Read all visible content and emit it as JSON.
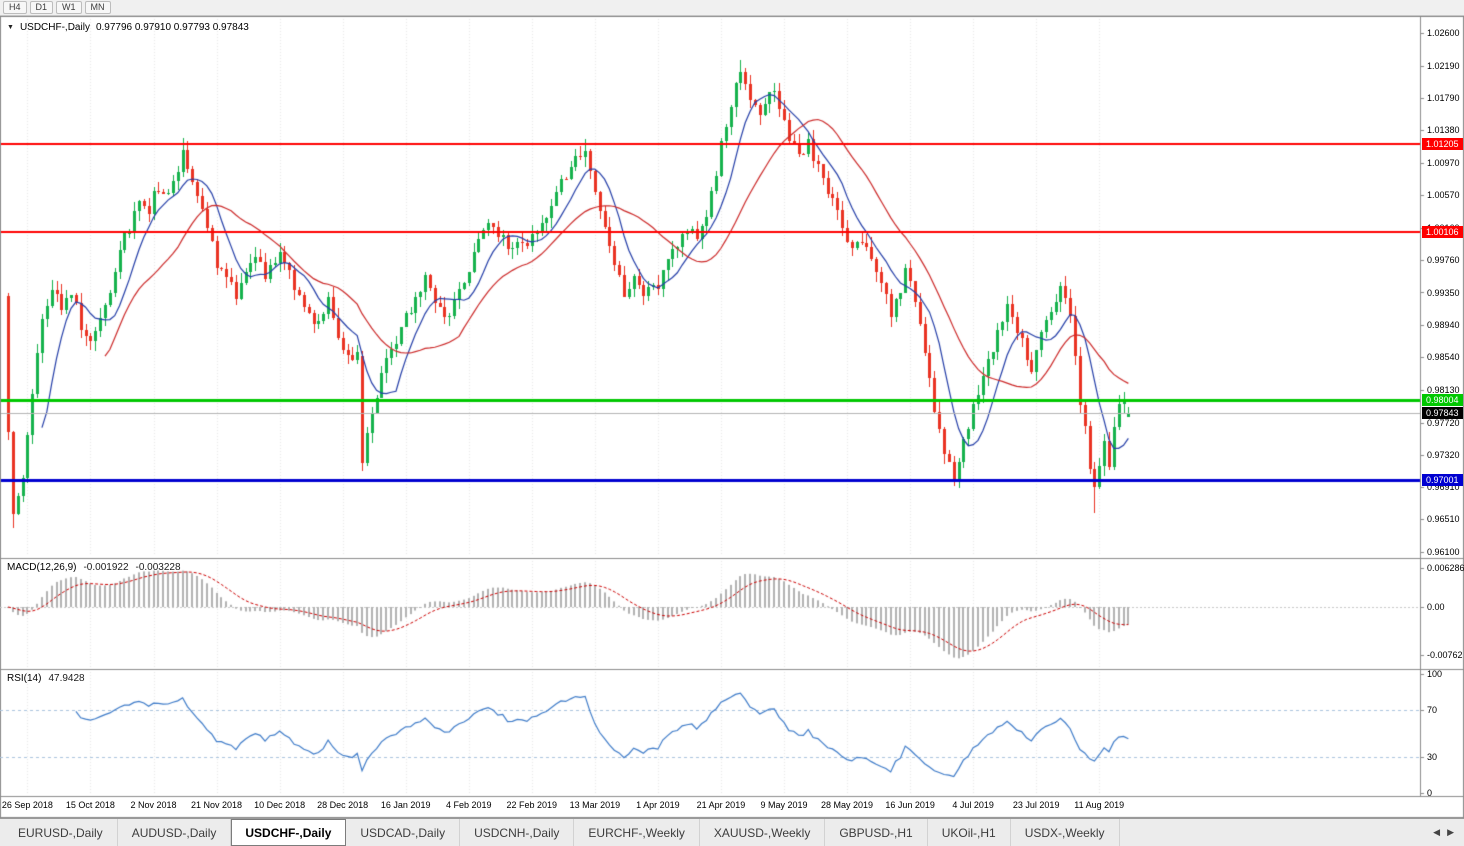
{
  "toolbar": {
    "timeframes": [
      "H4",
      "D1",
      "W1",
      "MN"
    ]
  },
  "header": {
    "collapse_icon": "▼",
    "title": "USDCHF-,Daily",
    "ohlc_text": "0.97796 0.97910 0.97793 0.97843"
  },
  "chart_data": {
    "type": "candlestick",
    "symbol": "USDCHF",
    "timeframe": "Daily",
    "title": "USDCHF-,Daily",
    "current_ohlc": {
      "open": 0.97796,
      "high": 0.9791,
      "low": 0.97793,
      "close": 0.97843
    },
    "ylim": [
      0.961,
      1.026
    ],
    "y_ticks": [
      1.026,
      1.0219,
      1.0179,
      1.0138,
      1.0097,
      1.0057,
      1.0016,
      0.9976,
      0.9935,
      0.9894,
      0.9854,
      0.9813,
      0.9772,
      0.9732,
      0.9691,
      0.9651,
      0.961
    ],
    "x_labels": [
      "26 Sep 2018",
      "15 Oct 2018",
      "2 Nov 2018",
      "21 Nov 2018",
      "10 Dec 2018",
      "28 Dec 2018",
      "16 Jan 2019",
      "4 Feb 2019",
      "22 Feb 2019",
      "13 Mar 2019",
      "1 Apr 2019",
      "21 Apr 2019",
      "9 May 2019",
      "28 May 2019",
      "16 Jun 2019",
      "4 Jul 2019",
      "23 Jul 2019",
      "11 Aug 2019"
    ],
    "bars_per_label": 13,
    "first_label_bar": 4,
    "count": 232,
    "anchors": [
      [
        0,
        0.98
      ],
      [
        1,
        0.966
      ],
      [
        3,
        0.9705
      ],
      [
        5,
        0.98
      ],
      [
        7,
        0.9905
      ],
      [
        9,
        0.9935
      ],
      [
        11,
        0.9918
      ],
      [
        13,
        0.9935
      ],
      [
        15,
        0.9895
      ],
      [
        17,
        0.9868
      ],
      [
        19,
        0.991
      ],
      [
        21,
        0.9942
      ],
      [
        23,
        0.999
      ],
      [
        25,
        1.0012
      ],
      [
        27,
        1.0048
      ],
      [
        29,
        1.004
      ],
      [
        31,
        1.0068
      ],
      [
        33,
        1.0052
      ],
      [
        35,
        1.0092
      ],
      [
        36,
        1.0108
      ],
      [
        38,
        1.0068
      ],
      [
        40,
        1.0038
      ],
      [
        42,
        0.9992
      ],
      [
        43,
        0.9972
      ],
      [
        45,
        0.995
      ],
      [
        47,
        0.9932
      ],
      [
        49,
        0.9962
      ],
      [
        51,
        0.998
      ],
      [
        53,
        0.9952
      ],
      [
        55,
        0.998
      ],
      [
        56,
        0.999
      ],
      [
        58,
        0.9962
      ],
      [
        60,
        0.993
      ],
      [
        62,
        0.9912
      ],
      [
        64,
        0.9892
      ],
      [
        66,
        0.9922
      ],
      [
        68,
        0.9882
      ],
      [
        69,
        0.9862
      ],
      [
        71,
        0.9845
      ],
      [
        72,
        0.9858
      ],
      [
        73,
        0.9722
      ],
      [
        75,
        0.9792
      ],
      [
        77,
        0.983
      ],
      [
        79,
        0.9862
      ],
      [
        81,
        0.989
      ],
      [
        82,
        0.9902
      ],
      [
        84,
        0.993
      ],
      [
        86,
        0.995
      ],
      [
        88,
        0.9922
      ],
      [
        90,
        0.9902
      ],
      [
        92,
        0.9922
      ],
      [
        94,
        0.995
      ],
      [
        95,
        0.9968
      ],
      [
        97,
        1.0
      ],
      [
        99,
        1.0022
      ],
      [
        101,
        1.001
      ],
      [
        103,
        0.9992
      ],
      [
        105,
        1.0002
      ],
      [
        107,
        0.999
      ],
      [
        108,
        1.0002
      ],
      [
        110,
        1.0022
      ],
      [
        112,
        1.0042
      ],
      [
        114,
        1.007
      ],
      [
        116,
        1.0092
      ],
      [
        118,
        1.0112
      ],
      [
        119,
        1.0118
      ],
      [
        121,
        1.0062
      ],
      [
        123,
        1.0012
      ],
      [
        125,
        0.9972
      ],
      [
        127,
        0.9932
      ],
      [
        129,
        0.9952
      ],
      [
        131,
        0.9932
      ],
      [
        133,
        0.9942
      ],
      [
        134,
        0.9946
      ],
      [
        136,
        0.9972
      ],
      [
        138,
        0.9992
      ],
      [
        140,
        1.0012
      ],
      [
        142,
        1.0002
      ],
      [
        144,
        1.0032
      ],
      [
        146,
        1.0082
      ],
      [
        147,
        1.0122
      ],
      [
        149,
        1.0172
      ],
      [
        151,
        1.0208
      ],
      [
        153,
        1.0182
      ],
      [
        155,
        1.0162
      ],
      [
        157,
        1.0192
      ],
      [
        159,
        1.0172
      ],
      [
        161,
        1.0132
      ],
      [
        163,
        1.0102
      ],
      [
        165,
        1.0122
      ],
      [
        167,
        1.0092
      ],
      [
        169,
        1.0062
      ],
      [
        171,
        1.0032
      ],
      [
        172,
        1.0012
      ],
      [
        174,
        0.9992
      ],
      [
        176,
        1.0002
      ],
      [
        178,
        0.9972
      ],
      [
        180,
        0.9942
      ],
      [
        182,
        0.9912
      ],
      [
        184,
        0.9942
      ],
      [
        185,
        0.9962
      ],
      [
        187,
        0.9922
      ],
      [
        189,
        0.9862
      ],
      [
        191,
        0.9792
      ],
      [
        193,
        0.9732
      ],
      [
        195,
        0.9705
      ],
      [
        197,
        0.9752
      ],
      [
        198,
        0.9772
      ],
      [
        200,
        0.9812
      ],
      [
        202,
        0.9852
      ],
      [
        204,
        0.9882
      ],
      [
        206,
        0.9922
      ],
      [
        208,
        0.9892
      ],
      [
        210,
        0.9852
      ],
      [
        211,
        0.9842
      ],
      [
        213,
        0.9882
      ],
      [
        215,
        0.9912
      ],
      [
        217,
        0.9945
      ],
      [
        219,
        0.9902
      ],
      [
        220,
        0.9862
      ],
      [
        221,
        0.9802
      ],
      [
        222,
        0.9762
      ],
      [
        223,
        0.9722
      ],
      [
        224,
        0.9692
      ],
      [
        225,
        0.9712
      ],
      [
        226,
        0.9742
      ],
      [
        227,
        0.9722
      ],
      [
        228,
        0.9762
      ],
      [
        229,
        0.9792
      ],
      [
        230,
        0.98
      ],
      [
        231,
        0.9784
      ]
    ],
    "overrides": [
      {
        "i": 0,
        "o": 0.993,
        "c": 0.976
      },
      {
        "i": 1,
        "o": 0.976,
        "c": 0.9658,
        "l": 0.964
      },
      {
        "i": 36,
        "h": 1.0128
      },
      {
        "i": 73,
        "o": 0.9856,
        "c": 0.9722,
        "l": 0.9712
      },
      {
        "i": 119,
        "h": 1.0127
      },
      {
        "i": 151,
        "h": 1.0226
      },
      {
        "i": 195,
        "l": 0.9693
      },
      {
        "i": 224,
        "l": 0.9659
      },
      {
        "i": 231,
        "o": 0.97796,
        "h": 0.9791,
        "l": 0.97793,
        "c": 0.97843
      }
    ],
    "hlines": [
      {
        "value": 1.01205,
        "color": "#ff0000",
        "thickness": 2
      },
      {
        "value": 1.00106,
        "color": "#ff0000",
        "thickness": 2
      },
      {
        "value": 0.98004,
        "color": "#00c800",
        "thickness": 3
      },
      {
        "value": 0.97001,
        "color": "#0000d0",
        "thickness": 3
      }
    ],
    "current_price": {
      "value": 0.97843,
      "line_color": "#b4b4b4",
      "badge_color": "#000000"
    },
    "colors": {
      "bull": "#16b24d",
      "bear": "#ea3323",
      "grid": "#e8e8e8",
      "axis_line": "#8c8c8c"
    },
    "indicators": {
      "ma_fast": {
        "type": "sma",
        "period": 8,
        "color": "#243ea8"
      },
      "ma_slow": {
        "type": "sma",
        "period": 21,
        "color": "#cc2929"
      },
      "macd": {
        "label": "MACD(12,26,9)",
        "value_main": "-0.001922",
        "value_signal": "-0.003228",
        "fast": 12,
        "slow": 26,
        "signal": 9,
        "hist_color": "#b2b2b2",
        "signal_color": "#cc0000",
        "axis": [
          {
            "value": 0.006286,
            "label": "0.006286"
          },
          {
            "value": 0,
            "label": "0.00"
          },
          {
            "value": -0.00762,
            "label": "-0.00762"
          }
        ]
      },
      "rsi": {
        "label": "RSI(14)",
        "value": "47.9428",
        "period": 14,
        "levels": [
          70,
          30
        ],
        "line_color": "#3f7cc9",
        "level_color": "#aac4de",
        "axis": [
          {
            "value": 100,
            "label": "100"
          },
          {
            "value": 70,
            "label": "70"
          },
          {
            "value": 30,
            "label": "30"
          },
          {
            "value": 0,
            "label": "0"
          }
        ]
      }
    }
  },
  "tabs": {
    "items": [
      "EURUSD-,Daily",
      "AUDUSD-,Daily",
      "USDCHF-,Daily",
      "USDCAD-,Daily",
      "USDCNH-,Daily",
      "EURCHF-,Weekly",
      "XAUUSD-,Weekly",
      "GBPUSD-,H1",
      "UKOil-,H1",
      "USDX-,Weekly"
    ],
    "active_index": 2,
    "scroll_left_icon": "◀",
    "scroll_right_icon": "▶"
  }
}
